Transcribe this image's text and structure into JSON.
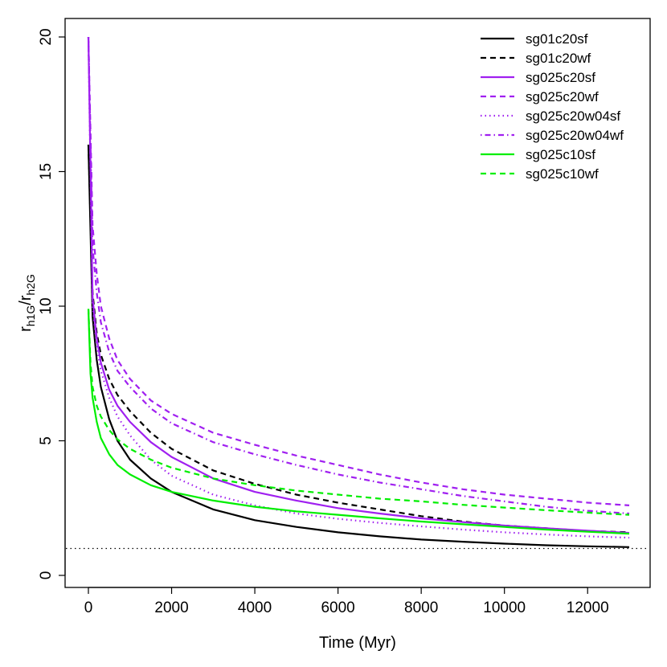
{
  "chart_data": {
    "type": "line",
    "xlabel": "Time (Myr)",
    "ylabel_main": "r",
    "ylabel_sub1": "h1G",
    "ylabel_sep": "/r",
    "ylabel_sub2": "h2G",
    "xlim": [
      0,
      13000
    ],
    "ylim": [
      0,
      20
    ],
    "xticks": [
      0,
      2000,
      4000,
      6000,
      8000,
      10000,
      12000
    ],
    "xtick_labels": [
      "0",
      "2000",
      "4000",
      "6000",
      "8000",
      "10000",
      "12000"
    ],
    "yticks": [
      0,
      5,
      10,
      15,
      20
    ],
    "ytick_labels": [
      "0",
      "5",
      "10",
      "15",
      "20"
    ],
    "grid": false,
    "legend_position": "top-right",
    "reference_line": {
      "y": 1,
      "style": "dotted",
      "color": "#000000"
    },
    "series": [
      {
        "name": "sg01c20sf",
        "color": "#000000",
        "dash": "solid",
        "x": [
          0,
          100,
          200,
          300,
          500,
          700,
          1000,
          1500,
          2000,
          3000,
          4000,
          5000,
          6000,
          7000,
          8000,
          9000,
          10000,
          11000,
          12000,
          13000
        ],
        "y": [
          16.0,
          9.6,
          8.0,
          7.0,
          5.8,
          5.0,
          4.3,
          3.6,
          3.1,
          2.45,
          2.05,
          1.8,
          1.6,
          1.45,
          1.33,
          1.25,
          1.18,
          1.12,
          1.08,
          1.05
        ]
      },
      {
        "name": "sg01c20wf",
        "color": "#000000",
        "dash": "dashed",
        "x": [
          0,
          100,
          200,
          300,
          500,
          700,
          1000,
          1500,
          2000,
          3000,
          4000,
          5000,
          6000,
          7000,
          8000,
          9000,
          10000,
          11000,
          12000,
          13000
        ],
        "y": [
          16.0,
          10.5,
          9.0,
          8.2,
          7.3,
          6.7,
          6.1,
          5.3,
          4.7,
          3.9,
          3.4,
          3.0,
          2.7,
          2.45,
          2.2,
          2.0,
          1.85,
          1.75,
          1.65,
          1.6
        ]
      },
      {
        "name": "sg025c20sf",
        "color": "#a020f0",
        "dash": "solid",
        "x": [
          0,
          100,
          200,
          300,
          500,
          700,
          1000,
          1500,
          2000,
          3000,
          4000,
          5000,
          6000,
          7000,
          8000,
          9000,
          10000,
          11000,
          12000,
          13000
        ],
        "y": [
          20.0,
          10.3,
          8.8,
          7.9,
          6.9,
          6.3,
          5.7,
          4.95,
          4.4,
          3.6,
          3.1,
          2.78,
          2.5,
          2.3,
          2.12,
          1.98,
          1.85,
          1.75,
          1.66,
          1.58
        ]
      },
      {
        "name": "sg025c20wf",
        "color": "#a020f0",
        "dash": "dashed",
        "x": [
          0,
          100,
          200,
          300,
          500,
          700,
          1000,
          1500,
          2000,
          3000,
          4000,
          5000,
          6000,
          7000,
          8000,
          9000,
          10000,
          11000,
          12000,
          13000
        ],
        "y": [
          20.0,
          13.0,
          11.2,
          10.0,
          8.8,
          8.0,
          7.3,
          6.5,
          6.0,
          5.3,
          4.85,
          4.45,
          4.1,
          3.75,
          3.45,
          3.2,
          3.0,
          2.85,
          2.7,
          2.6
        ]
      },
      {
        "name": "sg025c20w04sf",
        "color": "#a020f0",
        "dash": "dotted",
        "x": [
          0,
          100,
          200,
          300,
          500,
          700,
          1000,
          1500,
          2000,
          3000,
          4000,
          5000,
          6000,
          7000,
          8000,
          9000,
          10000,
          11000,
          12000,
          13000
        ],
        "y": [
          20.0,
          10.0,
          8.5,
          7.6,
          6.6,
          5.9,
          5.2,
          4.3,
          3.7,
          3.0,
          2.6,
          2.3,
          2.1,
          1.95,
          1.82,
          1.7,
          1.6,
          1.52,
          1.45,
          1.4
        ]
      },
      {
        "name": "sg025c20w04wf",
        "color": "#a020f0",
        "dash": "dashdot",
        "x": [
          0,
          100,
          200,
          300,
          500,
          700,
          1000,
          1500,
          2000,
          3000,
          4000,
          5000,
          6000,
          7000,
          8000,
          9000,
          10000,
          11000,
          12000,
          13000
        ],
        "y": [
          20.0,
          12.2,
          10.5,
          9.4,
          8.3,
          7.6,
          7.0,
          6.2,
          5.65,
          4.95,
          4.5,
          4.1,
          3.75,
          3.45,
          3.2,
          2.95,
          2.75,
          2.55,
          2.4,
          2.3
        ]
      },
      {
        "name": "sg025c10sf",
        "color": "#00ee00",
        "dash": "solid",
        "x": [
          0,
          50,
          100,
          200,
          300,
          500,
          700,
          1000,
          1500,
          2000,
          3000,
          4000,
          5000,
          6000,
          7000,
          8000,
          9000,
          10000,
          11000,
          12000,
          13000
        ],
        "y": [
          9.9,
          7.5,
          6.6,
          5.7,
          5.1,
          4.5,
          4.1,
          3.75,
          3.35,
          3.1,
          2.78,
          2.55,
          2.38,
          2.25,
          2.12,
          2.0,
          1.9,
          1.8,
          1.7,
          1.62,
          1.55
        ]
      },
      {
        "name": "sg025c10wf",
        "color": "#00ee00",
        "dash": "dashed",
        "x": [
          0,
          50,
          100,
          200,
          300,
          500,
          700,
          1000,
          1500,
          2000,
          3000,
          4000,
          5000,
          6000,
          7000,
          8000,
          9000,
          10000,
          11000,
          12000,
          13000
        ],
        "y": [
          9.9,
          7.9,
          7.0,
          6.3,
          5.9,
          5.4,
          5.05,
          4.7,
          4.3,
          4.0,
          3.6,
          3.35,
          3.15,
          3.0,
          2.85,
          2.75,
          2.62,
          2.52,
          2.42,
          2.33,
          2.25
        ]
      }
    ]
  }
}
